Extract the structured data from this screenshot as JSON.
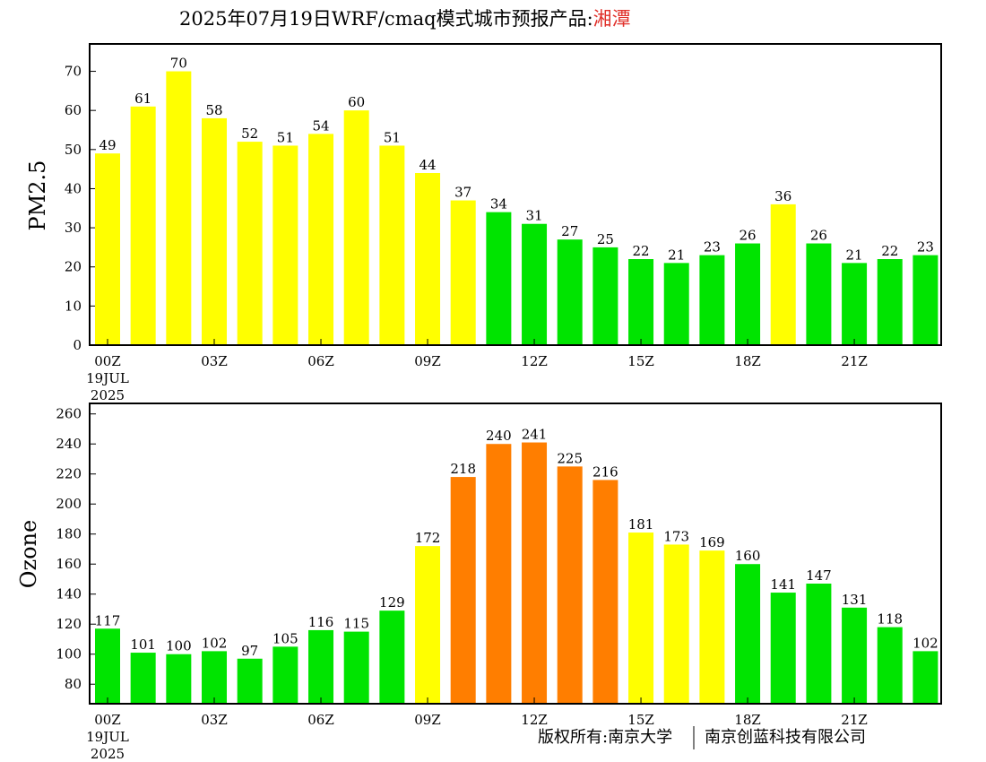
{
  "title": {
    "main": "2025年07月19日WRF/cmaq模式城市预报产品:",
    "city": "湘潭"
  },
  "colors": {
    "good": "#00e400",
    "moderate": "#ffff00",
    "usg": "#ff7e00",
    "city_title": "#e0302a"
  },
  "footer": {
    "left": "版权所有:南京大学",
    "right": "南京创蓝科技有限公司"
  },
  "x_tick_labels": [
    "00Z",
    "03Z",
    "06Z",
    "09Z",
    "12Z",
    "15Z",
    "18Z",
    "21Z"
  ],
  "x_date_label": [
    "19JUL",
    "2025"
  ],
  "chart_data": [
    {
      "type": "bar",
      "ylabel": "PM2.5",
      "ylim": [
        0,
        77
      ],
      "yticks": [
        0,
        10,
        20,
        30,
        40,
        50,
        60,
        70
      ],
      "hours": [
        0,
        1,
        2,
        3,
        4,
        5,
        6,
        7,
        8,
        9,
        10,
        11,
        12,
        13,
        14,
        15,
        16,
        17,
        18,
        19,
        20,
        21,
        22,
        23
      ],
      "values": [
        49,
        61,
        70,
        58,
        52,
        51,
        54,
        60,
        51,
        44,
        37,
        34,
        31,
        27,
        25,
        22,
        21,
        23,
        26,
        36,
        26,
        21,
        22,
        23
      ],
      "colors": [
        "moderate",
        "moderate",
        "moderate",
        "moderate",
        "moderate",
        "moderate",
        "moderate",
        "moderate",
        "moderate",
        "moderate",
        "moderate",
        "good",
        "good",
        "good",
        "good",
        "good",
        "good",
        "good",
        "good",
        "moderate",
        "good",
        "good",
        "good",
        "good"
      ]
    },
    {
      "type": "bar",
      "ylabel": "Ozone",
      "ylim": [
        67,
        267
      ],
      "yticks": [
        80,
        100,
        120,
        140,
        160,
        180,
        200,
        220,
        240,
        260
      ],
      "hours": [
        0,
        1,
        2,
        3,
        4,
        5,
        6,
        7,
        8,
        9,
        10,
        11,
        12,
        13,
        14,
        15,
        16,
        17,
        18,
        19,
        20,
        21,
        22,
        23
      ],
      "values": [
        117,
        101,
        100,
        102,
        97,
        105,
        116,
        115,
        129,
        172,
        218,
        240,
        241,
        225,
        216,
        181,
        173,
        169,
        160,
        141,
        147,
        131,
        118,
        102
      ],
      "colors": [
        "good",
        "good",
        "good",
        "good",
        "good",
        "good",
        "good",
        "good",
        "good",
        "moderate",
        "usg",
        "usg",
        "usg",
        "usg",
        "usg",
        "moderate",
        "moderate",
        "moderate",
        "good",
        "good",
        "good",
        "good",
        "good",
        "good"
      ]
    }
  ]
}
